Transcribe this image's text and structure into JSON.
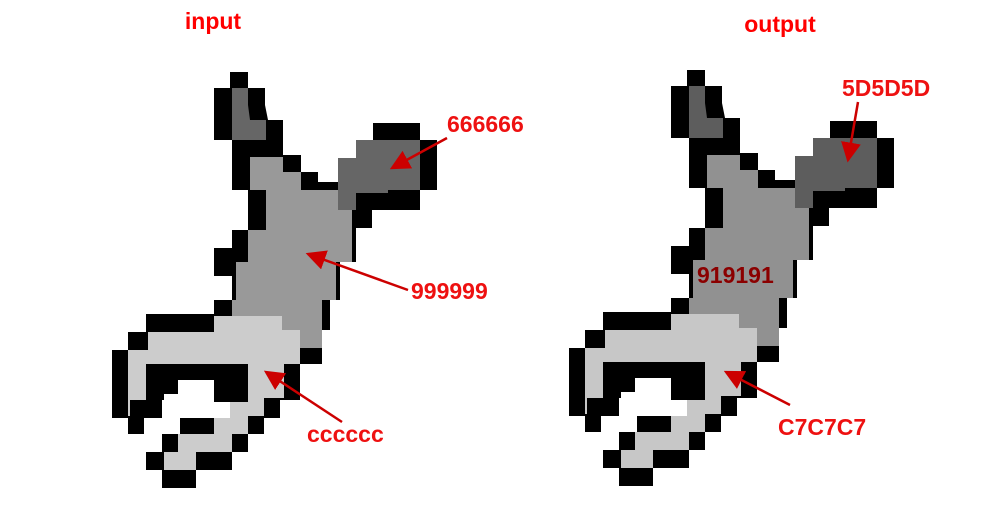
{
  "panels": [
    {
      "title": "input",
      "colors": {
        "dark": "#666666",
        "mid": "#999999",
        "light": "#cccccc"
      },
      "labels": {
        "dark": "666666",
        "mid": "999999",
        "light": "cccccc"
      }
    },
    {
      "title": "output",
      "colors": {
        "dark": "#5D5D5D",
        "mid": "#919191",
        "light": "#C7C7C7"
      },
      "labels": {
        "dark": "5D5D5D",
        "mid": "919191",
        "light": "C7C7C7"
      }
    }
  ],
  "label_color": "#ee1111",
  "inline_label_color": "#8b0000",
  "arrow_color": "#cc0000",
  "outline_color": "#000000"
}
